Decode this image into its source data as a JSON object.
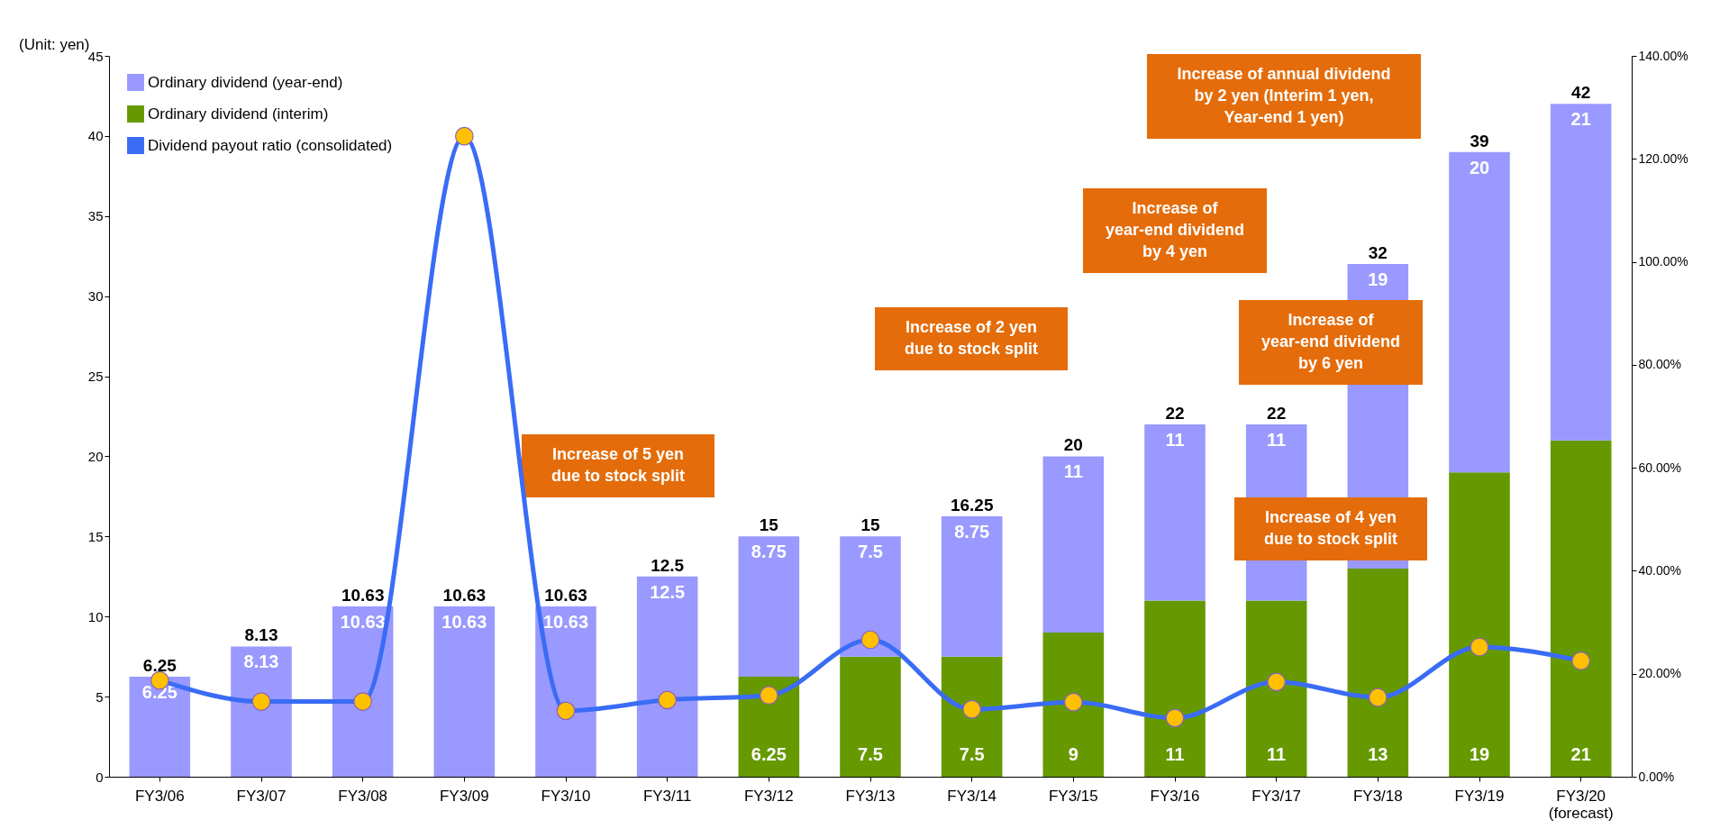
{
  "chart_data": {
    "type": "bar",
    "stacked": true,
    "ylabel": "(Unit: yen)",
    "categories": [
      "FY3/06",
      "FY3/07",
      "FY3/08",
      "FY3/09",
      "FY3/10",
      "FY3/11",
      "FY3/12",
      "FY3/13",
      "FY3/14",
      "FY3/15",
      "FY3/16",
      "FY3/17",
      "FY3/18",
      "FY3/19",
      "FY3/20 (forecast)"
    ],
    "series": [
      {
        "name": "Ordinary dividend (interim)",
        "color": "#669900",
        "values": [
          null,
          null,
          null,
          null,
          null,
          null,
          6.25,
          7.5,
          7.5,
          9,
          11,
          11,
          13,
          19,
          21
        ],
        "value_labels": [
          null,
          null,
          null,
          null,
          null,
          null,
          "6.25",
          "7.5",
          "7.5",
          "9",
          "11",
          "11",
          "13",
          "19",
          "21"
        ]
      },
      {
        "name": "Ordinary dividend (year-end)",
        "color": "#9999ff",
        "values": [
          6.25,
          8.13,
          10.63,
          10.63,
          10.63,
          12.5,
          8.75,
          7.5,
          8.75,
          11,
          11,
          11,
          19,
          20,
          21
        ],
        "value_labels": [
          "6.25",
          "8.13",
          "10.63",
          "10.63",
          "10.63",
          "12.5",
          "8.75",
          "7.5",
          "8.75",
          "11",
          "11",
          "11",
          "19",
          "20",
          "21"
        ]
      },
      {
        "name": "Dividend payout ratio (consolidated)",
        "type": "line",
        "axis": "y2",
        "color": "#3a6cf5",
        "values": [
          18.7,
          14.6,
          14.6,
          124.4,
          12.8,
          14.9,
          15.8,
          26.6,
          13.1,
          14.5,
          11.4,
          18.4,
          15.4,
          25.2,
          22.5
        ]
      }
    ],
    "totals": [
      "6.25",
      "8.13",
      "10.63",
      "10.63",
      "10.63",
      "12.5",
      "15",
      "15",
      "16.25",
      "20",
      "22",
      "22",
      "32",
      "39",
      "42"
    ],
    "ylim": [
      0,
      45
    ],
    "yticks": [
      0,
      5,
      10,
      15,
      20,
      25,
      30,
      35,
      40,
      45
    ],
    "y2lim": [
      0,
      140
    ],
    "y2ticks": [
      {
        "value": 0,
        "label": "0.00%"
      },
      {
        "value": 20,
        "label": "20.00%"
      },
      {
        "value": 40,
        "label": "40.00%"
      },
      {
        "value": 60,
        "label": "60.00%"
      },
      {
        "value": 80,
        "label": "80.00%"
      },
      {
        "value": 100,
        "label": "100.00%"
      },
      {
        "value": 120,
        "label": "120.00%"
      },
      {
        "value": 140,
        "label": "140.00%"
      }
    ],
    "legend": "top left",
    "marker": "circle",
    "line_style": "solid",
    "annotations": [
      "Increase of 5 yen due to stock split",
      "Increase of 2 yen due to stock split",
      "Increase of year-end dividend by 4 yen",
      "Increase of year-end dividend by 6 yen",
      "Increase of 4 yen due to stock split",
      "Increase of annual dividend by 2 yen (Interim 1 yen, Year-end 1 yen)"
    ]
  }
}
